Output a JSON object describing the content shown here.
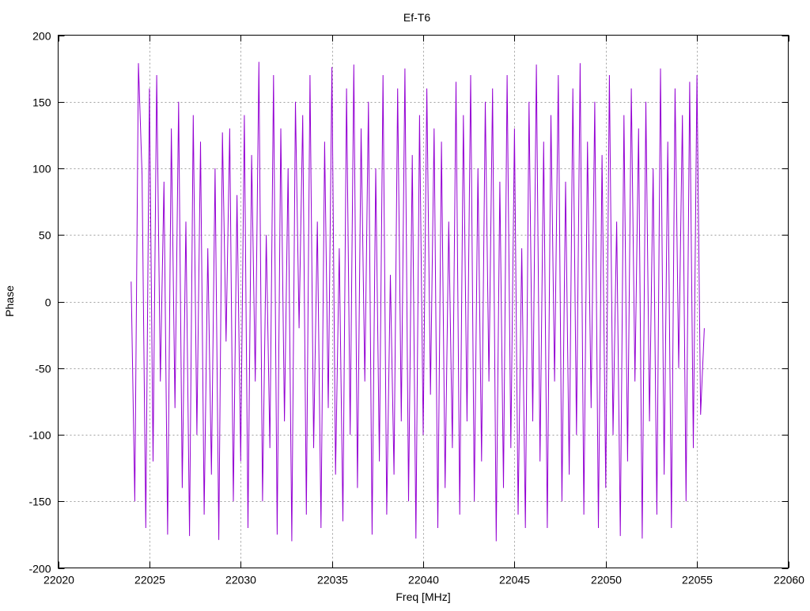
{
  "chart_data": {
    "type": "line",
    "title": "Ef-T6",
    "xlabel": "Freq [MHz]",
    "ylabel": "Phase",
    "xlim": [
      22020,
      22060
    ],
    "ylim": [
      -200,
      200
    ],
    "xticks": [
      22020,
      22025,
      22030,
      22035,
      22040,
      22045,
      22050,
      22055,
      22060
    ],
    "yticks": [
      -200,
      -150,
      -100,
      -50,
      0,
      50,
      100,
      150,
      200
    ],
    "grid": true,
    "legend": "none",
    "series": [
      {
        "name": "Ef-T6",
        "color": "#9400d3",
        "x_start": 22024.0,
        "x_step": 0.2,
        "values": [
          15,
          -150,
          179,
          95,
          -170,
          160,
          -120,
          170,
          -60,
          90,
          -175,
          130,
          -80,
          150,
          -140,
          60,
          -176,
          140,
          -100,
          120,
          -160,
          40,
          -130,
          100,
          -179,
          127,
          -30,
          130,
          -150,
          80,
          -120,
          140,
          -170,
          110,
          -60,
          180,
          -150,
          50,
          -110,
          170,
          -175,
          130,
          -90,
          100,
          -180,
          150,
          -20,
          140,
          -160,
          170,
          -110,
          60,
          -170,
          120,
          -80,
          176,
          -130,
          40,
          -165,
          160,
          -100,
          178,
          -140,
          130,
          -60,
          150,
          -175,
          100,
          -120,
          170,
          -160,
          20,
          -130,
          160,
          -90,
          175,
          -150,
          110,
          -178,
          140,
          -100,
          160,
          -70,
          130,
          -170,
          120,
          -140,
          60,
          -110,
          165,
          -160,
          140,
          -90,
          170,
          -150,
          100,
          -120,
          150,
          -60,
          160,
          -180,
          90,
          -140,
          170,
          -110,
          130,
          -160,
          40,
          -170,
          150,
          -90,
          178,
          -120,
          120,
          -170,
          140,
          -60,
          170,
          -150,
          90,
          -130,
          160,
          -100,
          179,
          -160,
          120,
          -80,
          150,
          -170,
          110,
          -140,
          170,
          -100,
          60,
          -176,
          140,
          -120,
          160,
          -60,
          130,
          -178,
          150,
          -90,
          100,
          -160,
          175,
          -130,
          120,
          -170,
          160,
          -50,
          140,
          -150,
          165,
          -110,
          170,
          -85,
          -20
        ]
      }
    ]
  }
}
